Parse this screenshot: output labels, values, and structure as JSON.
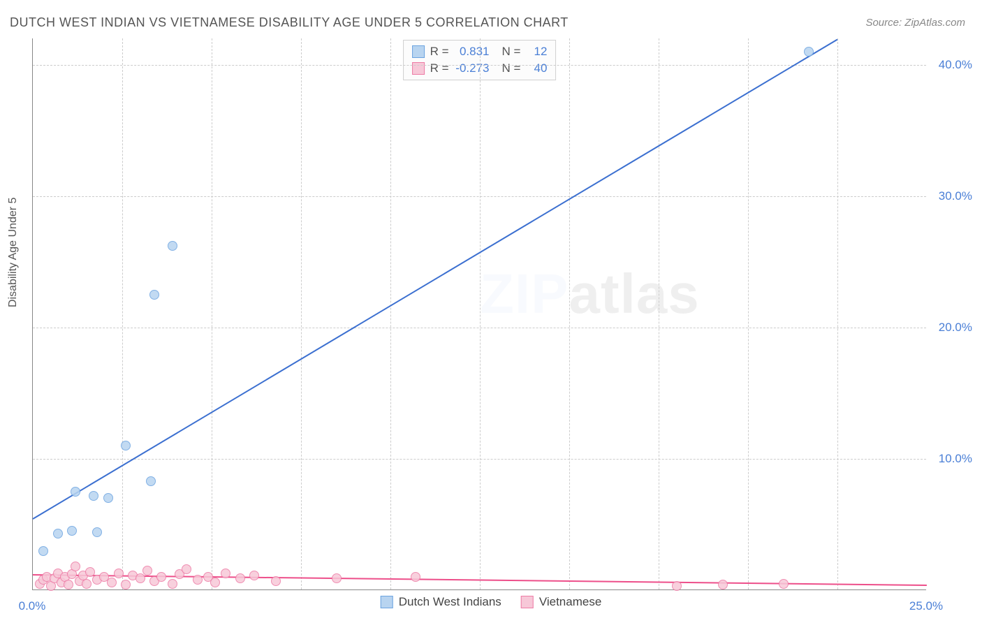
{
  "title": "DUTCH WEST INDIAN VS VIETNAMESE DISABILITY AGE UNDER 5 CORRELATION CHART",
  "source": "Source: ZipAtlas.com",
  "y_axis_title": "Disability Age Under 5",
  "watermark": {
    "zip": "ZIP",
    "atlas": "atlas"
  },
  "chart": {
    "type": "scatter",
    "xlim": [
      0,
      25
    ],
    "ylim": [
      0,
      42
    ],
    "background_color": "#ffffff",
    "grid_color": "#cccccc",
    "axis_color": "#888888",
    "xticks": [
      {
        "val": 0.0,
        "label": "0.0%"
      },
      {
        "val": 25.0,
        "label": "25.0%"
      }
    ],
    "yticks": [
      {
        "val": 10.0,
        "label": "10.0%"
      },
      {
        "val": 20.0,
        "label": "20.0%"
      },
      {
        "val": 30.0,
        "label": "30.0%"
      },
      {
        "val": 40.0,
        "label": "40.0%"
      }
    ],
    "x_grid_vals": [
      2.5,
      5,
      7.5,
      10,
      12.5,
      15,
      17.5,
      20,
      22.5
    ],
    "series": [
      {
        "name": "Dutch West Indians",
        "fill": "#b8d4f0",
        "stroke": "#6ba3e0",
        "marker_size": 14,
        "R": "0.831",
        "N": "12",
        "trend": {
          "x1": 0,
          "y1": 5.5,
          "x2": 22.5,
          "y2": 42,
          "color": "#3b6fd0",
          "width": 2
        },
        "points": [
          {
            "x": 0.3,
            "y": 3.0
          },
          {
            "x": 0.7,
            "y": 4.3
          },
          {
            "x": 1.1,
            "y": 4.5
          },
          {
            "x": 1.8,
            "y": 4.4
          },
          {
            "x": 1.2,
            "y": 7.5
          },
          {
            "x": 1.7,
            "y": 7.2
          },
          {
            "x": 2.1,
            "y": 7.0
          },
          {
            "x": 3.3,
            "y": 8.3
          },
          {
            "x": 2.6,
            "y": 11.0
          },
          {
            "x": 3.4,
            "y": 22.5
          },
          {
            "x": 3.9,
            "y": 26.2
          },
          {
            "x": 21.7,
            "y": 41.0
          }
        ]
      },
      {
        "name": "Vietnamese",
        "fill": "#f7c8d8",
        "stroke": "#ed7ba5",
        "marker_size": 14,
        "R": "-0.273",
        "N": "40",
        "trend": {
          "x1": 0,
          "y1": 1.2,
          "x2": 25,
          "y2": 0.4,
          "color": "#ed4f8a",
          "width": 2
        },
        "points": [
          {
            "x": 0.2,
            "y": 0.5
          },
          {
            "x": 0.3,
            "y": 0.8
          },
          {
            "x": 0.4,
            "y": 1.0
          },
          {
            "x": 0.5,
            "y": 0.3
          },
          {
            "x": 0.6,
            "y": 0.9
          },
          {
            "x": 0.7,
            "y": 1.3
          },
          {
            "x": 0.8,
            "y": 0.6
          },
          {
            "x": 0.9,
            "y": 1.0
          },
          {
            "x": 1.0,
            "y": 0.4
          },
          {
            "x": 1.1,
            "y": 1.2
          },
          {
            "x": 1.2,
            "y": 1.8
          },
          {
            "x": 1.3,
            "y": 0.7
          },
          {
            "x": 1.4,
            "y": 1.1
          },
          {
            "x": 1.5,
            "y": 0.5
          },
          {
            "x": 1.6,
            "y": 1.4
          },
          {
            "x": 1.8,
            "y": 0.8
          },
          {
            "x": 2.0,
            "y": 1.0
          },
          {
            "x": 2.2,
            "y": 0.6
          },
          {
            "x": 2.4,
            "y": 1.3
          },
          {
            "x": 2.6,
            "y": 0.4
          },
          {
            "x": 2.8,
            "y": 1.1
          },
          {
            "x": 3.0,
            "y": 0.9
          },
          {
            "x": 3.2,
            "y": 1.5
          },
          {
            "x": 3.4,
            "y": 0.7
          },
          {
            "x": 3.6,
            "y": 1.0
          },
          {
            "x": 3.9,
            "y": 0.5
          },
          {
            "x": 4.1,
            "y": 1.2
          },
          {
            "x": 4.3,
            "y": 1.6
          },
          {
            "x": 4.6,
            "y": 0.8
          },
          {
            "x": 4.9,
            "y": 1.0
          },
          {
            "x": 5.1,
            "y": 0.6
          },
          {
            "x": 5.4,
            "y": 1.3
          },
          {
            "x": 5.8,
            "y": 0.9
          },
          {
            "x": 6.2,
            "y": 1.1
          },
          {
            "x": 6.8,
            "y": 0.7
          },
          {
            "x": 8.5,
            "y": 0.9
          },
          {
            "x": 10.7,
            "y": 1.0
          },
          {
            "x": 18.0,
            "y": 0.3
          },
          {
            "x": 19.3,
            "y": 0.4
          },
          {
            "x": 21.0,
            "y": 0.5
          }
        ]
      }
    ]
  },
  "legend_top": {
    "r_label": "R =",
    "n_label": "N ="
  },
  "legend_bottom": [
    {
      "label": "Dutch West Indians",
      "fill": "#b8d4f0",
      "stroke": "#6ba3e0"
    },
    {
      "label": "Vietnamese",
      "fill": "#f7c8d8",
      "stroke": "#ed7ba5"
    }
  ]
}
